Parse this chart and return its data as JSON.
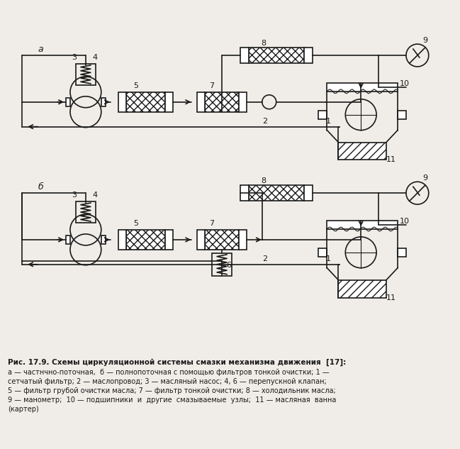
{
  "fig_width": 6.49,
  "fig_height": 6.33,
  "dpi": 100,
  "bg_color": "#f0ede8",
  "line_color": "#1a1a1a",
  "caption_title": "Рис. 17.9. Схемы циркуляционной системы смазки механизма движения  [17]:",
  "caption_lines": [
    "а — частнчно-поточная,  б — полнопоточная с помощью фильтров тонкой очистки; 1 —",
    "сетчатый фильтр; 2 — маслопровод; 3 — масляный насос; 4, 6 — перепускной клапан;",
    "5 — фильтр грубой очистки масла; 7 — фильтр тонкой очистки; 8 — холодильник масла;",
    "9 — манометр;  10 — подшипники  и  другие  смазываемые  узлы;  11 — масляная  ванна",
    "(картер)"
  ],
  "label_a": "а",
  "label_b": "б"
}
